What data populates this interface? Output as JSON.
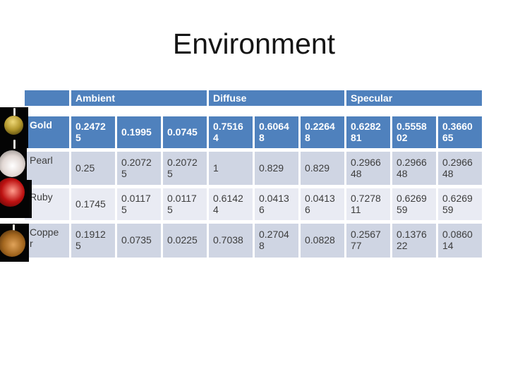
{
  "slide": {
    "title": "Environment"
  },
  "colors": {
    "header_blue": "#4f81bd",
    "band_dark": "#cfd5e3",
    "band_light": "#e9ebf3",
    "body_text": "#3d3d3d",
    "header_text": "#ffffff"
  },
  "table": {
    "corner_label": "",
    "column_groups": [
      "Ambient",
      "Diffuse",
      "Specular"
    ],
    "rows": [
      {
        "name": "Gold",
        "style": "highlight",
        "ambient": [
          "0.24725",
          "0.1995",
          "0.0745"
        ],
        "diffuse": [
          "0.75164",
          "0.60648",
          "0.22648"
        ],
        "specular": [
          "0.628281",
          "0.555802",
          "0.366065"
        ]
      },
      {
        "name": "Pearl",
        "style": "dark",
        "ambient": [
          "0.25",
          "0.20725",
          "0.20725"
        ],
        "diffuse": [
          "1",
          "0.829",
          "0.829"
        ],
        "specular": [
          "0.296648",
          "0.296648",
          "0.296648"
        ]
      },
      {
        "name": "Ruby",
        "style": "light",
        "ambient": [
          "0.1745",
          "0.01175",
          "0.01175"
        ],
        "diffuse": [
          "0.61424",
          "0.04136",
          "0.04136"
        ],
        "specular": [
          "0.727811",
          "0.626959",
          "0.626959"
        ]
      },
      {
        "name": "Copper",
        "style": "dark",
        "ambient": [
          "0.19125",
          "0.0735",
          "0.0225"
        ],
        "diffuse": [
          "0.7038",
          "0.27048",
          "0.0828"
        ],
        "specular": [
          "0.256777",
          "0.137622",
          "0.086014"
        ]
      }
    ]
  },
  "spheres": [
    {
      "material": "Gold",
      "colors": {
        "highlight": "#eed878",
        "mid": "#b3972c",
        "edge": "#463a08"
      }
    },
    {
      "material": "Pearl",
      "colors": {
        "highlight": "#ffffff",
        "mid": "#e2d8d4",
        "edge": "#837e7b"
      }
    },
    {
      "material": "Ruby",
      "colors": {
        "highlight": "#ff9d8d",
        "mid": "#bd1111",
        "edge": "#470404"
      }
    },
    {
      "material": "Copper",
      "colors": {
        "highlight": "#e0a35a",
        "mid": "#a4671f",
        "edge": "#3f2408"
      }
    }
  ]
}
